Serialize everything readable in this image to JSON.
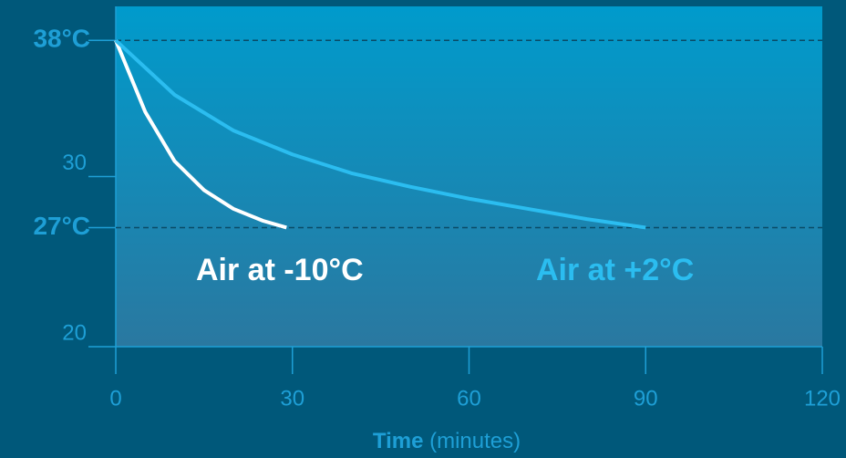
{
  "chart_data": {
    "type": "line",
    "xlabel": "Time",
    "xlabel_unit": "(minutes)",
    "xlim": [
      0,
      120
    ],
    "xticks": [
      0,
      30,
      60,
      90,
      120
    ],
    "ylim": [
      20,
      40
    ],
    "yticks": [
      20,
      30,
      {
        "value": 38,
        "label": "38°C"
      },
      {
        "value": 27,
        "label": "27°C"
      }
    ],
    "series": [
      {
        "name": "Air at -10°C",
        "color": "#ffffff",
        "x": [
          0,
          5,
          10,
          15,
          20,
          25,
          29
        ],
        "values": [
          38,
          33.8,
          30.9,
          29.2,
          28.1,
          27.4,
          27
        ]
      },
      {
        "name": "Air at +2°C",
        "color": "#2bbdf0",
        "x": [
          0,
          10,
          20,
          30,
          40,
          50,
          60,
          70,
          80,
          90
        ],
        "values": [
          38,
          34.8,
          32.7,
          31.3,
          30.2,
          29.4,
          28.7,
          28.1,
          27.5,
          27
        ]
      }
    ]
  }
}
